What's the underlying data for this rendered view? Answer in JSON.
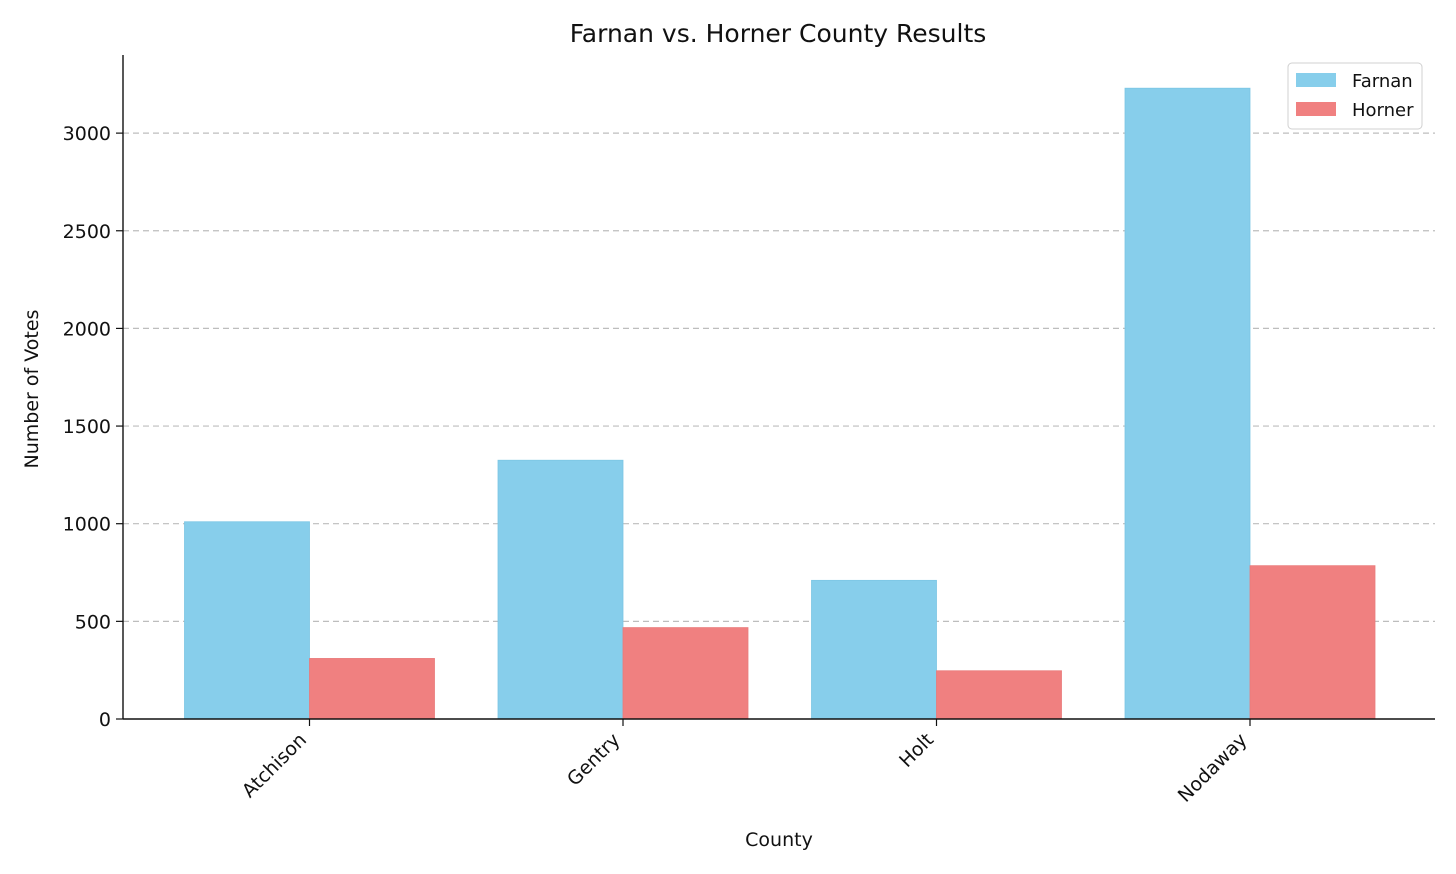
{
  "chart_data": {
    "type": "bar",
    "title": "Farnan vs. Horner County Results",
    "xlabel": "County",
    "ylabel": "Number of Votes",
    "categories": [
      "Atchison",
      "Gentry",
      "Holt",
      "Nodaway"
    ],
    "series": [
      {
        "name": "Farnan",
        "color": "#87CEEB",
        "values": [
          1010,
          1325,
          710,
          3230
        ]
      },
      {
        "name": "Horner",
        "color": "#F08080",
        "values": [
          310,
          468,
          247,
          785
        ]
      }
    ],
    "ylim": [
      0,
      3400
    ],
    "yticks": [
      0,
      500,
      1000,
      1500,
      2000,
      2500,
      3000
    ],
    "ytick_labels": [
      "0",
      "500",
      "1000",
      "1500",
      "2000",
      "2500",
      "3000"
    ],
    "grid": "y-dashed",
    "legend_position": "top-right"
  }
}
